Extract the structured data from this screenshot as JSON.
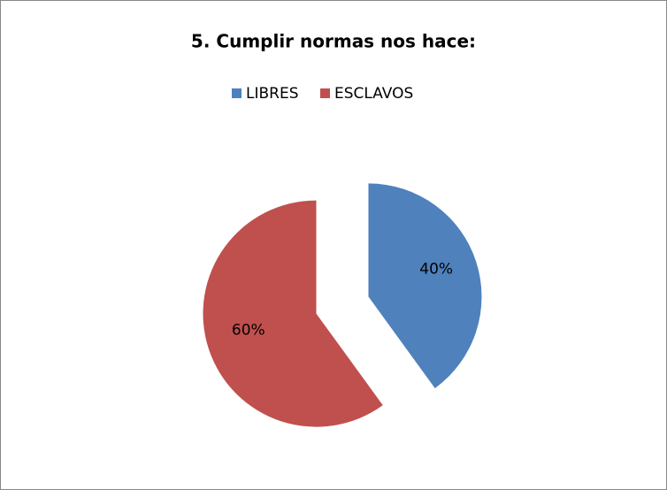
{
  "chart_data": {
    "type": "pie",
    "title": "5. Cumplir normas nos hace:",
    "categories": [
      "LIBRES",
      "ESCLAVOS"
    ],
    "values": [
      40,
      60
    ],
    "value_labels": [
      "40%",
      "60%"
    ],
    "colors": [
      "#4f81bd",
      "#c0504d"
    ],
    "legend": "top",
    "exploded": true
  }
}
